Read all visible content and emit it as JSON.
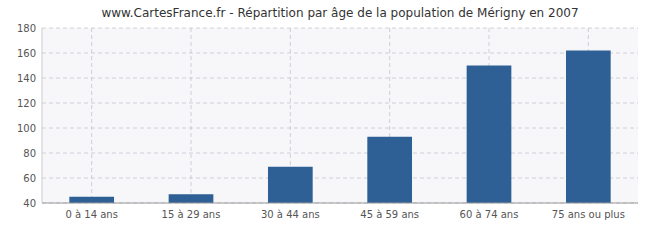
{
  "chart_data": {
    "type": "bar",
    "title": "www.CartesFrance.fr - Répartition par âge de la population de Mérigny en 2007",
    "categories": [
      "0 à 14 ans",
      "15 à 29 ans",
      "30 à 44 ans",
      "45 à 59 ans",
      "60 à 74 ans",
      "75 ans ou plus"
    ],
    "values": [
      45,
      47,
      69,
      93,
      150,
      162
    ],
    "color": "#2e6096",
    "ylim": [
      40,
      180
    ],
    "yticks": [
      40,
      60,
      80,
      100,
      120,
      140,
      160,
      180
    ],
    "grid": true
  }
}
